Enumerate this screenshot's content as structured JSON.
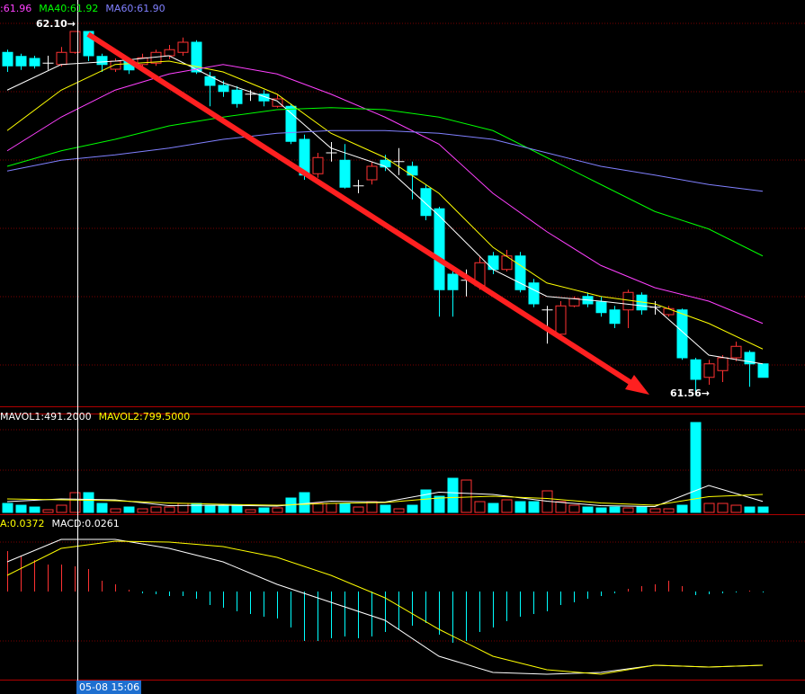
{
  "chart_data": [
    {
      "type": "candlestick",
      "up_color": "#ff3232",
      "down_color": "#00ffff",
      "flat_color": "#ffffff",
      "ylim": [
        61.56,
        62.1
      ],
      "legend": [
        {
          "label": ":61.96",
          "color": "#ff40ff"
        },
        {
          "label": "MA40:61.92",
          "color": "#00ff00"
        },
        {
          "label": "MA60:61.90",
          "color": "#8080ff"
        }
      ],
      "annotations": [
        {
          "label": "62.10→"
        },
        {
          "label": "61.56→"
        }
      ],
      "open": [
        62.069,
        62.063,
        62.06,
        62.053,
        62.051,
        62.069,
        62.1,
        62.063,
        62.044,
        62.056,
        62.051,
        62.053,
        62.064,
        62.069,
        62.084,
        62.033,
        62.02,
        62.013,
        62.007,
        62.007,
        61.989,
        61.989,
        61.94,
        61.889,
        61.92,
        61.909,
        61.871,
        61.88,
        61.909,
        61.907,
        61.9,
        61.867,
        61.837,
        61.74,
        61.731,
        61.723,
        61.767,
        61.747,
        61.767,
        61.727,
        61.687,
        61.651,
        61.693,
        61.707,
        61.699,
        61.687,
        61.687,
        61.709,
        61.691,
        61.68,
        61.687,
        61.613,
        61.587,
        61.597,
        61.616,
        61.624,
        61.607
      ],
      "high": [
        62.073,
        62.067,
        62.064,
        62.064,
        62.077,
        62.1,
        62.1,
        62.067,
        62.06,
        62.06,
        62.067,
        62.073,
        62.08,
        62.091,
        62.087,
        62.04,
        62.027,
        62.019,
        62.013,
        62.013,
        62.007,
        61.993,
        61.947,
        61.92,
        61.936,
        61.933,
        61.88,
        61.907,
        61.917,
        61.927,
        61.907,
        61.873,
        61.84,
        61.747,
        61.747,
        61.767,
        61.773,
        61.776,
        61.773,
        61.733,
        61.693,
        61.7,
        61.707,
        61.713,
        61.707,
        61.693,
        61.717,
        61.713,
        61.7,
        61.693,
        61.689,
        61.616,
        61.613,
        61.62,
        61.64,
        61.627,
        61.607
      ],
      "low": [
        62.04,
        62.043,
        62.045,
        62.043,
        62.048,
        62.067,
        62.056,
        62.04,
        62.04,
        62.037,
        62.047,
        62.049,
        62.059,
        62.064,
        62.037,
        61.989,
        62.003,
        61.987,
        61.997,
        61.989,
        61.987,
        61.933,
        61.88,
        61.883,
        61.907,
        61.867,
        61.86,
        61.873,
        61.893,
        61.887,
        61.851,
        61.82,
        61.677,
        61.677,
        61.707,
        61.717,
        61.74,
        61.744,
        61.713,
        61.691,
        61.637,
        61.647,
        61.691,
        61.691,
        61.677,
        61.66,
        61.66,
        61.68,
        61.68,
        61.677,
        61.613,
        61.56,
        61.576,
        61.58,
        61.611,
        61.573,
        61.587
      ],
      "close": [
        62.049,
        62.049,
        62.049,
        62.053,
        62.069,
        62.1,
        62.064,
        62.051,
        62.056,
        62.043,
        62.061,
        62.069,
        62.073,
        62.084,
        62.04,
        62.02,
        62.011,
        61.993,
        62.007,
        61.997,
        62.0,
        61.937,
        61.887,
        61.913,
        61.92,
        61.869,
        61.871,
        61.9,
        61.899,
        61.907,
        61.887,
        61.827,
        61.717,
        61.717,
        61.731,
        61.757,
        61.747,
        61.767,
        61.717,
        61.696,
        61.687,
        61.693,
        61.704,
        61.696,
        61.683,
        61.667,
        61.713,
        61.687,
        61.691,
        61.689,
        61.616,
        61.584,
        61.607,
        61.616,
        61.633,
        61.607,
        61.587
      ],
      "series": [
        {
          "color": "#ffffff",
          "x": [
            0,
            4,
            8,
            12,
            16,
            20,
            24,
            28,
            32,
            36,
            40,
            44,
            48,
            52,
            56
          ],
          "values": [
            62.013,
            62.051,
            62.056,
            62.064,
            62.024,
            61.997,
            61.927,
            61.9,
            61.827,
            61.747,
            61.707,
            61.7,
            61.691,
            61.62,
            61.607
          ]
        },
        {
          "color": "#ffff00",
          "x": [
            0,
            4,
            8,
            12,
            16,
            20,
            24,
            28,
            32,
            36,
            40,
            44,
            48,
            52,
            56
          ],
          "values": [
            61.953,
            62.013,
            62.051,
            62.056,
            62.04,
            62.007,
            61.949,
            61.913,
            61.86,
            61.78,
            61.727,
            61.707,
            61.696,
            61.667,
            61.629
          ]
        },
        {
          "color": "#ff40ff",
          "x": [
            0,
            4,
            8,
            12,
            16,
            20,
            24,
            28,
            32,
            36,
            40,
            44,
            48,
            52,
            56
          ],
          "values": [
            61.923,
            61.973,
            62.013,
            62.037,
            62.051,
            62.037,
            62.007,
            61.973,
            61.933,
            61.86,
            61.803,
            61.753,
            61.72,
            61.7,
            61.667
          ]
        },
        {
          "color": "#00ff00",
          "x": [
            0,
            4,
            8,
            12,
            16,
            20,
            24,
            28,
            32,
            36,
            40,
            44,
            48,
            52,
            56
          ],
          "values": [
            61.9,
            61.923,
            61.94,
            61.96,
            61.973,
            61.984,
            61.987,
            61.984,
            61.973,
            61.953,
            61.913,
            61.873,
            61.833,
            61.807,
            61.767
          ]
        },
        {
          "color": "#8080ff",
          "x": [
            0,
            4,
            8,
            12,
            16,
            20,
            24,
            28,
            32,
            36,
            40,
            44,
            48,
            52,
            56
          ],
          "values": [
            61.893,
            61.909,
            61.917,
            61.927,
            61.94,
            61.949,
            61.953,
            61.953,
            61.949,
            61.94,
            61.92,
            61.9,
            61.887,
            61.873,
            61.863
          ]
        }
      ]
    },
    {
      "type": "volume",
      "ylim": [
        0,
        4000
      ],
      "legend": [
        {
          "label": "MAVOL1:491.2000",
          "color": "#ffffff"
        },
        {
          "label": "MAVOL2:799.5000",
          "color": "#ffff00"
        }
      ],
      "values": [
        400,
        320,
        240,
        120,
        320,
        880,
        880,
        400,
        160,
        240,
        160,
        240,
        240,
        400,
        400,
        320,
        280,
        320,
        120,
        200,
        200,
        640,
        880,
        400,
        400,
        400,
        240,
        480,
        320,
        160,
        320,
        1000,
        720,
        1520,
        1440,
        480,
        400,
        560,
        480,
        480,
        960,
        480,
        320,
        240,
        200,
        240,
        200,
        240,
        160,
        160,
        320,
        4000,
        400,
        400,
        320,
        240,
        240
      ],
      "series": [
        {
          "color": "#ffffff",
          "x": [
            0,
            4,
            8,
            12,
            16,
            20,
            24,
            28,
            32,
            36,
            40,
            44,
            48,
            52,
            56
          ],
          "values": [
            480,
            600,
            560,
            300,
            320,
            280,
            500,
            460,
            900,
            800,
            500,
            300,
            260,
            1200,
            491.2
          ]
        },
        {
          "color": "#ffff00",
          "x": [
            0,
            4,
            8,
            12,
            16,
            20,
            24,
            28,
            32,
            36,
            40,
            44,
            48,
            52,
            56
          ],
          "values": [
            600,
            560,
            520,
            420,
            360,
            320,
            400,
            440,
            640,
            720,
            620,
            420,
            320,
            700,
            799.5
          ]
        }
      ]
    },
    {
      "type": "macd",
      "ylim": [
        -0.07,
        0.056
      ],
      "up_color": "#ff3232",
      "down_color": "#00ffff",
      "legend": [
        {
          "label": "A:0.0372",
          "color": "#ffff00"
        },
        {
          "label": "MACD:0.0261",
          "color": "#ffffff"
        }
      ],
      "values": [
        0.0315,
        0.028,
        0.0245,
        0.021,
        0.021,
        0.0196,
        0.0175,
        0.0084,
        0.0056,
        0.0014,
        -0.0014,
        -0.0021,
        -0.0035,
        -0.0035,
        -0.0056,
        -0.0105,
        -0.0126,
        -0.0154,
        -0.0175,
        -0.0196,
        -0.021,
        -0.028,
        -0.0385,
        -0.0385,
        -0.0364,
        -0.035,
        -0.0364,
        -0.035,
        -0.0315,
        -0.0294,
        -0.0266,
        -0.0245,
        -0.0336,
        -0.0399,
        -0.0385,
        -0.0315,
        -0.028,
        -0.0231,
        -0.0196,
        -0.0175,
        -0.0154,
        -0.0105,
        -0.0084,
        -0.0056,
        -0.0035,
        -0.0014,
        0.0021,
        0.0042,
        0.0056,
        0.0084,
        0.0042,
        -0.0028,
        -0.0021,
        -0.0014,
        -0.0007,
        0.0007,
        -0.0007
      ],
      "series": [
        {
          "color": "#ffffff",
          "x": [
            0,
            4,
            8,
            12,
            16,
            20,
            24,
            28,
            32,
            36,
            40,
            44,
            48,
            52,
            56
          ],
          "values": [
            0.0231,
            0.0406,
            0.0406,
            0.0336,
            0.0231,
            0.0056,
            -0.0084,
            -0.0224,
            -0.0504,
            -0.063,
            -0.0644,
            -0.063,
            -0.0574,
            -0.0588,
            -0.0574
          ]
        },
        {
          "color": "#ffff00",
          "x": [
            0,
            4,
            8,
            12,
            16,
            20,
            24,
            28,
            32,
            36,
            40,
            44,
            48,
            52,
            56
          ],
          "values": [
            0.0126,
            0.0336,
            0.0392,
            0.0385,
            0.035,
            0.0266,
            0.0126,
            -0.0049,
            -0.0294,
            -0.0504,
            -0.0609,
            -0.0644,
            -0.0574,
            -0.0588,
            -0.0574
          ]
        }
      ]
    }
  ],
  "cursor": {
    "label": "05-08 15:06"
  }
}
